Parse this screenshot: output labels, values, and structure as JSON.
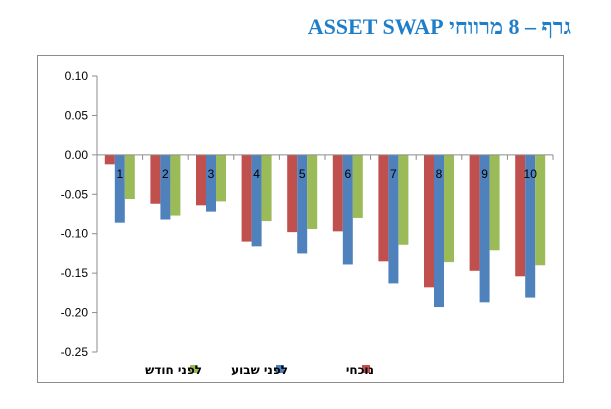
{
  "title": "גרף – 8 מרווחי ASSET SWAP",
  "chart_data": {
    "type": "bar",
    "title": "גרף – 8 מרווחי ASSET SWAP",
    "xlabel": "",
    "ylabel": "",
    "categories": [
      "1",
      "2",
      "3",
      "4",
      "5",
      "6",
      "7",
      "8",
      "9",
      "10"
    ],
    "ylim": [
      -0.25,
      0.1
    ],
    "yticks": [
      "0.10",
      "0.05",
      "0.00",
      "-0.05",
      "-0.10",
      "-0.15",
      "-0.20",
      "-0.25"
    ],
    "grid": false,
    "legend_position": "bottom",
    "series": [
      {
        "name": "נוכחי",
        "color": "#c0504d",
        "values": [
          -0.012,
          -0.062,
          -0.064,
          -0.11,
          -0.098,
          -0.097,
          -0.135,
          -0.168,
          -0.147,
          -0.154
        ]
      },
      {
        "name": "לפני שבוע",
        "color": "#4f81bd",
        "values": [
          -0.086,
          -0.082,
          -0.072,
          -0.116,
          -0.125,
          -0.139,
          -0.163,
          -0.193,
          -0.187,
          -0.181
        ]
      },
      {
        "name": "לפני חודש",
        "color": "#9bbb59",
        "values": [
          -0.056,
          -0.077,
          -0.059,
          -0.084,
          -0.094,
          -0.08,
          -0.114,
          -0.136,
          -0.121,
          -0.14
        ]
      }
    ]
  }
}
